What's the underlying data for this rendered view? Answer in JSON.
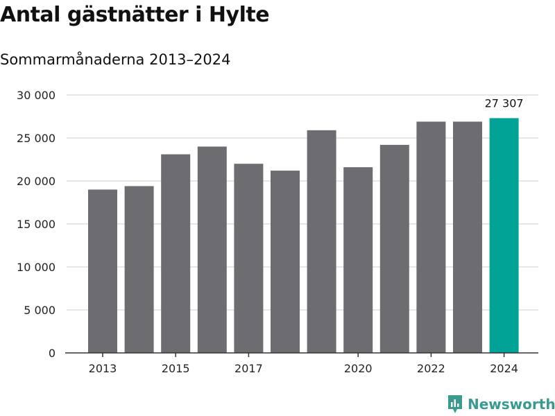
{
  "title": "Antal gästnätter i Hylte",
  "subtitle": "Sommarmånaderna 2013–2024",
  "brand": {
    "name": "Newsworthy",
    "icon": "newsworthy-logo-icon",
    "color": "#3a9a90"
  },
  "colors": {
    "bar": "#6d6c71",
    "highlight": "#00a396",
    "grid": "#dddddd",
    "axis": "#333333"
  },
  "chart_data": {
    "type": "bar",
    "title": "Antal gästnätter i Hylte",
    "subtitle": "Sommarmånaderna 2013–2024",
    "categories": [
      "2013",
      "2014",
      "2015",
      "2016",
      "2017",
      "2018",
      "2019",
      "2020",
      "2021",
      "2022",
      "2023",
      "2024"
    ],
    "values": [
      19000,
      19400,
      23100,
      24000,
      22000,
      21200,
      25900,
      21600,
      24200,
      26900,
      26900,
      27307
    ],
    "ylim": [
      0,
      30000
    ],
    "yticks": [
      0,
      5000,
      10000,
      15000,
      20000,
      25000,
      30000
    ],
    "ytick_labels": [
      "0",
      "5 000",
      "10 000",
      "15 000",
      "20 000",
      "25 000",
      "30 000"
    ],
    "xtick_labels": [
      "2013",
      "2015",
      "2017",
      "2020",
      "2022",
      "2024"
    ],
    "highlight_category": "2024",
    "data_labels": [
      {
        "category": "2024",
        "text": "27 307"
      }
    ],
    "grid": true,
    "legend": "none"
  }
}
